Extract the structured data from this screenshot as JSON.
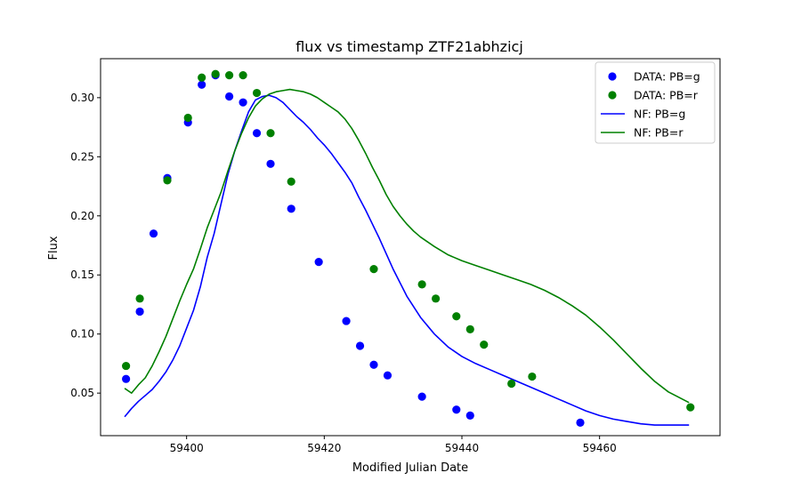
{
  "chart_data": {
    "type": "scatter",
    "title": "flux vs timestamp ZTF21abhzicj",
    "xlabel": "Modified Julian Date",
    "ylabel": "Flux",
    "xlim": [
      59387.5,
      59477.5
    ],
    "ylim": [
      0.014,
      0.333
    ],
    "xticks": [
      59400,
      59420,
      59440,
      59460
    ],
    "yticks": [
      0.05,
      0.1,
      0.15,
      0.2,
      0.25,
      0.3
    ],
    "grid": false,
    "legend_position": "top-right",
    "series": [
      {
        "name": "DATA: PB=g",
        "kind": "scatter",
        "color": "#0000ff",
        "x": [
          59391.2,
          59393.2,
          59395.2,
          59397.2,
          59400.2,
          59402.2,
          59404.2,
          59406.2,
          59408.2,
          59410.2,
          59412.2,
          59415.2,
          59419.2,
          59423.2,
          59425.2,
          59427.2,
          59429.2,
          59434.2,
          59439.2,
          59441.2,
          59457.2
        ],
        "y": [
          0.062,
          0.119,
          0.185,
          0.232,
          0.279,
          0.311,
          0.319,
          0.301,
          0.296,
          0.27,
          0.244,
          0.206,
          0.161,
          0.111,
          0.09,
          0.074,
          0.065,
          0.047,
          0.036,
          0.031,
          0.025
        ]
      },
      {
        "name": "DATA: PB=r",
        "kind": "scatter",
        "color": "#008000",
        "x": [
          59391.2,
          59393.2,
          59397.2,
          59400.2,
          59402.2,
          59404.2,
          59406.2,
          59408.2,
          59410.2,
          59412.2,
          59415.2,
          59427.2,
          59434.2,
          59436.2,
          59439.2,
          59441.2,
          59443.2,
          59447.2,
          59450.2,
          59473.2
        ],
        "y": [
          0.073,
          0.13,
          0.23,
          0.283,
          0.317,
          0.32,
          0.319,
          0.319,
          0.304,
          0.27,
          0.229,
          0.155,
          0.142,
          0.13,
          0.115,
          0.104,
          0.091,
          0.058,
          0.064,
          0.038
        ]
      },
      {
        "name": "NF: PB=g",
        "kind": "line",
        "color": "#0000ff",
        "x": [
          59391.0,
          59392.0,
          59393.0,
          59394.0,
          59395.0,
          59396.0,
          59397.0,
          59398.0,
          59399.0,
          59400.0,
          59401.0,
          59402.0,
          59403.0,
          59404.0,
          59405.0,
          59406.0,
          59407.0,
          59408.0,
          59409.0,
          59410.0,
          59411.0,
          59412.0,
          59413.0,
          59414.0,
          59415.0,
          59416.0,
          59417.0,
          59418.0,
          59419.0,
          59420.0,
          59421.0,
          59422.0,
          59423.0,
          59424.0,
          59425.0,
          59426.0,
          59427.0,
          59428.0,
          59429.0,
          59430.0,
          59432.0,
          59434.0,
          59436.0,
          59438.0,
          59440.0,
          59442.0,
          59444.0,
          59446.0,
          59448.0,
          59450.0,
          59452.0,
          59454.0,
          59456.0,
          59458.0,
          59460.0,
          59462.0,
          59464.0,
          59466.0,
          59468.0,
          59470.0,
          59473.0
        ],
        "y": [
          0.03,
          0.037,
          0.043,
          0.048,
          0.053,
          0.06,
          0.068,
          0.078,
          0.09,
          0.105,
          0.12,
          0.14,
          0.165,
          0.185,
          0.21,
          0.235,
          0.255,
          0.272,
          0.288,
          0.298,
          0.301,
          0.302,
          0.3,
          0.296,
          0.29,
          0.284,
          0.279,
          0.273,
          0.266,
          0.26,
          0.253,
          0.245,
          0.237,
          0.228,
          0.216,
          0.205,
          0.193,
          0.181,
          0.168,
          0.155,
          0.132,
          0.114,
          0.1,
          0.089,
          0.081,
          0.075,
          0.07,
          0.065,
          0.06,
          0.055,
          0.05,
          0.045,
          0.04,
          0.035,
          0.031,
          0.028,
          0.026,
          0.024,
          0.023,
          0.023,
          0.023
        ]
      },
      {
        "name": "NF: PB=r",
        "kind": "line",
        "color": "#008000",
        "x": [
          59391.0,
          59392.0,
          59393.0,
          59394.0,
          59395.0,
          59396.0,
          59397.0,
          59398.0,
          59399.0,
          59400.0,
          59401.0,
          59402.0,
          59403.0,
          59404.0,
          59405.0,
          59406.0,
          59407.0,
          59408.0,
          59409.0,
          59410.0,
          59411.0,
          59412.0,
          59413.0,
          59414.0,
          59415.0,
          59416.0,
          59417.0,
          59418.0,
          59419.0,
          59420.0,
          59421.0,
          59422.0,
          59423.0,
          59424.0,
          59425.0,
          59426.0,
          59427.0,
          59428.0,
          59429.0,
          59430.0,
          59431.0,
          59432.0,
          59433.0,
          59434.0,
          59436.0,
          59438.0,
          59440.0,
          59442.0,
          59444.0,
          59446.0,
          59448.0,
          59450.0,
          59452.0,
          59454.0,
          59456.0,
          59458.0,
          59460.0,
          59462.0,
          59464.0,
          59466.0,
          59468.0,
          59470.0,
          59473.0
        ],
        "y": [
          0.054,
          0.05,
          0.057,
          0.063,
          0.073,
          0.085,
          0.098,
          0.113,
          0.128,
          0.142,
          0.155,
          0.172,
          0.19,
          0.205,
          0.22,
          0.238,
          0.255,
          0.27,
          0.283,
          0.293,
          0.299,
          0.303,
          0.305,
          0.306,
          0.307,
          0.306,
          0.305,
          0.303,
          0.3,
          0.296,
          0.292,
          0.288,
          0.282,
          0.274,
          0.264,
          0.253,
          0.241,
          0.23,
          0.218,
          0.208,
          0.2,
          0.193,
          0.187,
          0.182,
          0.174,
          0.167,
          0.162,
          0.158,
          0.154,
          0.15,
          0.146,
          0.142,
          0.137,
          0.131,
          0.124,
          0.116,
          0.106,
          0.095,
          0.083,
          0.071,
          0.06,
          0.051,
          0.042
        ]
      }
    ]
  }
}
